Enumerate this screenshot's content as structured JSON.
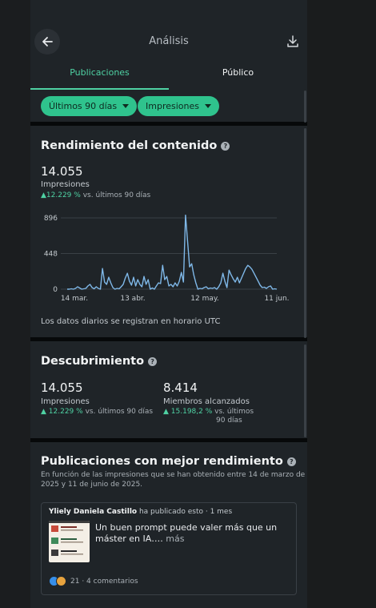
{
  "header": {
    "title": "Análisis",
    "back_icon": "arrow-left-icon",
    "download_icon": "download-icon"
  },
  "tabs": [
    {
      "label": "Publicaciones",
      "active": true
    },
    {
      "label": "Público",
      "active": false
    }
  ],
  "filters": [
    {
      "label": "Últimos 90 días"
    },
    {
      "label": "Impresiones"
    }
  ],
  "performance": {
    "title": "Rendimiento del contenido",
    "value": "14.055",
    "label": "Impresiones",
    "delta_value": "12.229 %",
    "delta_suffix": "vs. últimos 90 días",
    "note": "Los datos diarios se registran en horario UTC"
  },
  "chart_data": {
    "type": "line",
    "x_ticks": [
      "14 mar.",
      "13 abr.",
      "12 may.",
      "11 jun."
    ],
    "y_ticks": [
      "896",
      "448",
      "0"
    ],
    "ylim": [
      0,
      896
    ],
    "color": "#7fb8e8",
    "values": [
      0,
      0,
      5,
      0,
      10,
      30,
      15,
      0,
      5,
      10,
      40,
      60,
      20,
      5,
      30,
      10,
      0,
      260,
      90,
      60,
      150,
      80,
      20,
      0,
      10,
      5,
      30,
      60,
      140,
      200,
      100,
      50,
      150,
      40,
      120,
      60,
      30,
      160,
      60,
      120,
      0,
      15,
      0,
      40,
      80,
      70,
      300,
      120,
      160,
      40,
      60,
      30,
      80,
      40,
      100,
      210,
      90,
      930,
      600,
      280,
      320,
      180,
      80,
      0,
      10,
      5,
      20,
      30,
      5,
      15,
      10,
      20,
      0,
      30,
      80,
      200,
      100,
      20,
      240,
      180,
      130,
      90,
      150,
      80,
      140,
      200,
      260,
      300,
      280,
      250,
      200,
      150,
      100,
      50,
      20,
      25,
      10,
      30,
      40,
      0,
      5,
      0
    ]
  },
  "discovery": {
    "title": "Descubrimiento",
    "impressions": {
      "value": "14.055",
      "label": "Impresiones",
      "delta_value": "12.229 %",
      "delta_suffix": "vs. últimos 90 días"
    },
    "members": {
      "value": "8.414",
      "label": "Miembros alcanzados",
      "delta_value": "15.198,2 %",
      "delta_suffix_1": "vs. últimos",
      "delta_suffix_2": "90 días"
    }
  },
  "top_posts": {
    "title": "Publicaciones con mejor rendimiento",
    "subtitle_1": "En función de las impresiones que se han obtenido entre 14 de marzo de",
    "subtitle_2": "2025 y 11 de junio de 2025.",
    "post": {
      "author": "Yliely Daniela Castillo",
      "action": "ha publicado esto · 1 mes",
      "text": "Un buen prompt puede valer más que un máster en IA….",
      "more": "más",
      "reactions": "21 · 4 comentarios"
    }
  },
  "colors": {
    "accent": "#4fd1a3",
    "chip": "#2fc38d",
    "card": "#1f2428"
  }
}
